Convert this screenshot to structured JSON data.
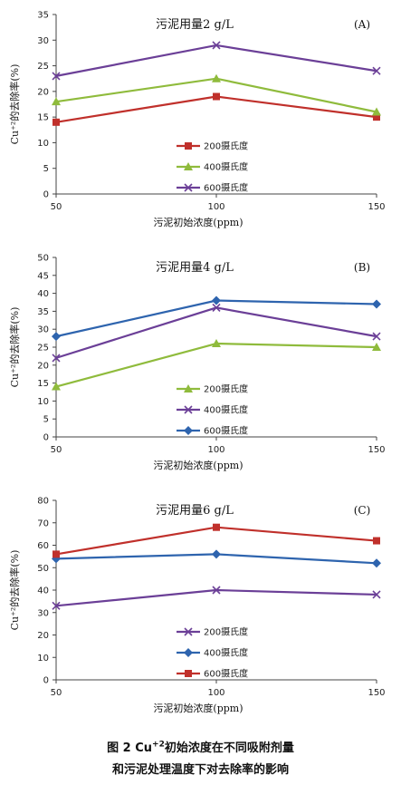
{
  "caption": {
    "line1_prefix": "图 2   Cu",
    "line1_sup": "+2",
    "line1_suffix": "初始浓度在不同吸附剂量",
    "line2": "和污泥处理温度下对去除率的影响"
  },
  "colors": {
    "red": "#c0302b",
    "green": "#8fbb3c",
    "purple": "#6b3f97",
    "blue": "#2e64ae"
  },
  "chart_data": [
    {
      "type": "line",
      "title": "污泥用量2  g/L",
      "panel_label": "(A)",
      "xlabel": "污泥初始浓度(ppm)",
      "ylabel": "Cu⁺²的去除率(%)",
      "x": [
        50,
        100,
        150
      ],
      "x_ticks": [
        "50",
        "100",
        "150"
      ],
      "ylim": [
        0,
        35
      ],
      "y_ticks": [
        "0",
        "5",
        "10",
        "15",
        "20",
        "25",
        "30",
        "35"
      ],
      "legend_position": "bottom-center",
      "series": [
        {
          "name": "200摄氏度",
          "values": [
            14,
            19,
            15
          ],
          "color": "#c0302b",
          "marker": "square"
        },
        {
          "name": "400摄氏度",
          "values": [
            18,
            22.5,
            16
          ],
          "color": "#8fbb3c",
          "marker": "triangle"
        },
        {
          "name": "600摄氏度",
          "values": [
            23,
            29,
            24
          ],
          "color": "#6b3f97",
          "marker": "x"
        }
      ]
    },
    {
      "type": "line",
      "title": "污泥用量4  g/L",
      "panel_label": "(B)",
      "xlabel": "污泥初始浓度(ppm)",
      "ylabel": "Cu⁺²的去除率(%)",
      "x": [
        50,
        100,
        150
      ],
      "x_ticks": [
        "50",
        "100",
        "150"
      ],
      "ylim": [
        0,
        50
      ],
      "y_ticks": [
        "0",
        "5",
        "10",
        "15",
        "20",
        "25",
        "30",
        "35",
        "40",
        "45",
        "50"
      ],
      "legend_position": "bottom-center",
      "series": [
        {
          "name": "200摄氏度",
          "values": [
            14,
            26,
            25
          ],
          "color": "#8fbb3c",
          "marker": "triangle"
        },
        {
          "name": "400摄氏度",
          "values": [
            22,
            36,
            28
          ],
          "color": "#6b3f97",
          "marker": "x"
        },
        {
          "name": "600摄氏度",
          "values": [
            28,
            38,
            37
          ],
          "color": "#2e64ae",
          "marker": "diamond"
        }
      ]
    },
    {
      "type": "line",
      "title": "污泥用量6  g/L",
      "panel_label": "(C)",
      "xlabel": "污泥初始浓度(ppm)",
      "ylabel": "Cu⁺²的去除率(%)",
      "x": [
        50,
        100,
        150
      ],
      "x_ticks": [
        "50",
        "100",
        "150"
      ],
      "ylim": [
        0,
        80
      ],
      "y_ticks": [
        "0",
        "10",
        "20",
        "30",
        "40",
        "50",
        "60",
        "70",
        "80"
      ],
      "legend_position": "bottom-center",
      "series": [
        {
          "name": "200摄氏度",
          "values": [
            33,
            40,
            38
          ],
          "color": "#6b3f97",
          "marker": "x"
        },
        {
          "name": "400摄氏度",
          "values": [
            54,
            56,
            52
          ],
          "color": "#2e64ae",
          "marker": "diamond"
        },
        {
          "name": "600摄氏度",
          "values": [
            56,
            68,
            62
          ],
          "color": "#c0302b",
          "marker": "square"
        }
      ]
    }
  ]
}
